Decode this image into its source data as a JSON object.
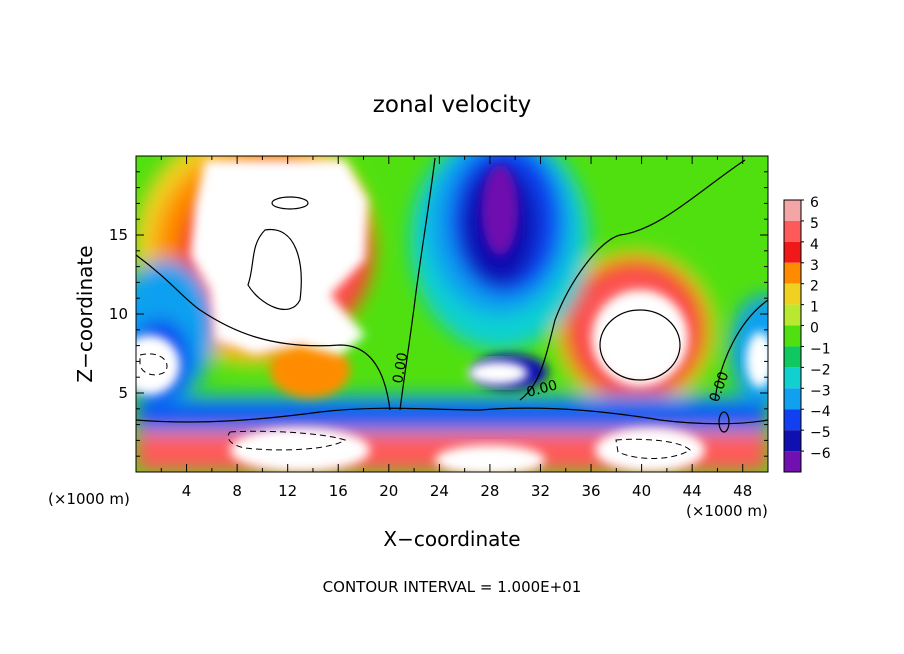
{
  "chart_data": {
    "type": "heatmap",
    "title": "zonal velocity",
    "xlabel": "X−coordinate",
    "ylabel": "Z−coordinate",
    "x_units_left": "(×1000 m)",
    "x_units_right": "(×1000 m)",
    "xlim": [
      0,
      50
    ],
    "ylim": [
      0,
      20
    ],
    "x_ticks": [
      4,
      8,
      12,
      16,
      20,
      24,
      28,
      32,
      36,
      40,
      44,
      48
    ],
    "y_ticks": [
      5,
      10,
      15
    ],
    "colorbar": {
      "levels": [
        6,
        5,
        4,
        3,
        2,
        1,
        0,
        -1,
        -2,
        -3,
        -4,
        -5,
        -6
      ],
      "labels": [
        "6",
        "5",
        "4",
        "3",
        "2",
        "1",
        "0",
        "−1",
        "−2",
        "−3",
        "−4",
        "−5",
        "−6"
      ],
      "colors": [
        "#f4a6a6",
        "#ff5a5a",
        "#f01818",
        "#ff8c00",
        "#f0d020",
        "#b8e830",
        "#50e010",
        "#10c860",
        "#10d0d0",
        "#10a0f0",
        "#1040f0",
        "#1010b0",
        "#7010b0"
      ]
    },
    "contour_labels": [
      "0.00",
      "0.00",
      "0.00"
    ],
    "footer": "CONTOUR INTERVAL = 1.000E+01"
  }
}
